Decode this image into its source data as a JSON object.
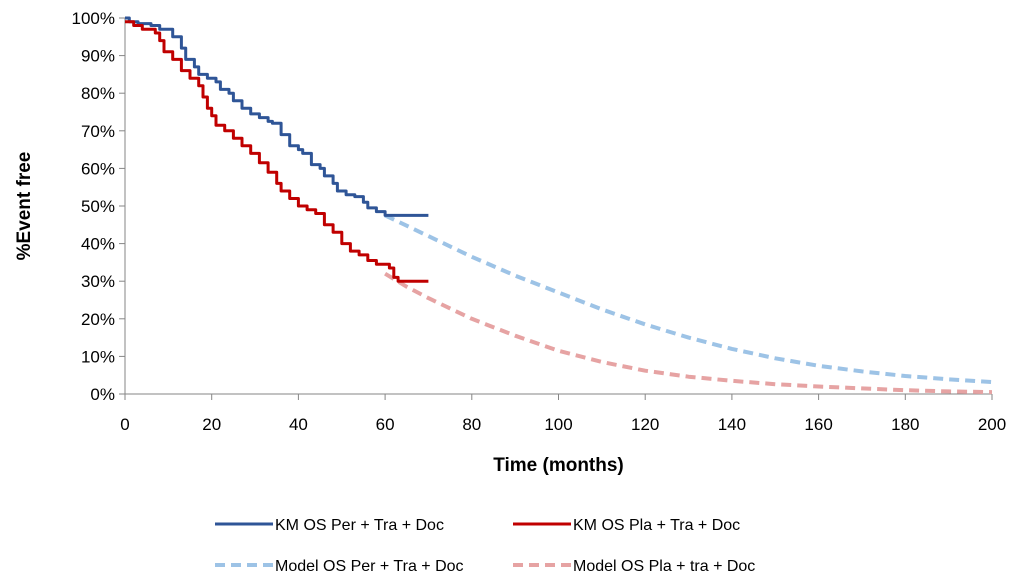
{
  "chart_data": {
    "type": "line",
    "title": "",
    "xlabel": "Time (months)",
    "ylabel": "%Event free",
    "xlim": [
      0,
      200
    ],
    "ylim": [
      0,
      100
    ],
    "x_ticks": [
      0,
      20,
      40,
      60,
      80,
      100,
      120,
      140,
      160,
      180,
      200
    ],
    "y_ticks": [
      0,
      10,
      20,
      30,
      40,
      50,
      60,
      70,
      80,
      90,
      100
    ],
    "y_tick_format": "percent",
    "grid": false,
    "legend_position": "bottom",
    "series": [
      {
        "name": "KM OS Per + Tra + Doc",
        "style": "solid",
        "color": "#2f5597",
        "step": true,
        "points": [
          [
            0,
            100
          ],
          [
            1,
            99
          ],
          [
            3,
            98.5
          ],
          [
            6,
            98
          ],
          [
            8,
            97
          ],
          [
            11,
            95
          ],
          [
            13,
            92
          ],
          [
            14,
            89
          ],
          [
            16,
            87
          ],
          [
            17,
            85
          ],
          [
            19,
            84
          ],
          [
            21,
            83
          ],
          [
            22,
            81
          ],
          [
            24,
            80
          ],
          [
            25,
            78
          ],
          [
            27,
            76
          ],
          [
            29,
            74.5
          ],
          [
            31,
            73.5
          ],
          [
            33,
            72.5
          ],
          [
            34,
            72
          ],
          [
            36,
            69
          ],
          [
            38,
            66
          ],
          [
            40,
            65
          ],
          [
            41,
            64
          ],
          [
            43,
            61
          ],
          [
            45,
            60
          ],
          [
            46,
            58
          ],
          [
            48,
            56
          ],
          [
            49,
            54
          ],
          [
            51,
            53
          ],
          [
            53,
            52.5
          ],
          [
            55,
            51
          ],
          [
            56,
            49.5
          ],
          [
            58,
            48.5
          ],
          [
            60,
            47.5
          ],
          [
            70,
            47.5
          ]
        ]
      },
      {
        "name": "KM OS Pla + Tra + Doc",
        "style": "solid",
        "color": "#c00000",
        "step": true,
        "points": [
          [
            0,
            99
          ],
          [
            2,
            98
          ],
          [
            4,
            97
          ],
          [
            7,
            96
          ],
          [
            8,
            94
          ],
          [
            9,
            91
          ],
          [
            11,
            89
          ],
          [
            13,
            86
          ],
          [
            15,
            84
          ],
          [
            17,
            82
          ],
          [
            18,
            79
          ],
          [
            19,
            76
          ],
          [
            20,
            74
          ],
          [
            21,
            71.5
          ],
          [
            23,
            70
          ],
          [
            25,
            68
          ],
          [
            27,
            66
          ],
          [
            29,
            64
          ],
          [
            31,
            61.5
          ],
          [
            33,
            59
          ],
          [
            35,
            56
          ],
          [
            36,
            54
          ],
          [
            38,
            52
          ],
          [
            40,
            50
          ],
          [
            42,
            49
          ],
          [
            44,
            48
          ],
          [
            46,
            45
          ],
          [
            48,
            43
          ],
          [
            50,
            40
          ],
          [
            52,
            38
          ],
          [
            54,
            37
          ],
          [
            56,
            35.5
          ],
          [
            58,
            34.5
          ],
          [
            61,
            33.5
          ],
          [
            62,
            31
          ],
          [
            63,
            30
          ],
          [
            70,
            30
          ]
        ]
      },
      {
        "name": "Model OS Per + Tra + Doc",
        "style": "dashed",
        "color": "#9dc3e6",
        "points": [
          [
            60,
            47.5
          ],
          [
            70,
            42
          ],
          [
            80,
            36.5
          ],
          [
            90,
            31.5
          ],
          [
            100,
            27
          ],
          [
            110,
            22.5
          ],
          [
            120,
            18.5
          ],
          [
            130,
            15
          ],
          [
            140,
            12
          ],
          [
            150,
            9.5
          ],
          [
            160,
            7.5
          ],
          [
            170,
            6
          ],
          [
            180,
            4.8
          ],
          [
            190,
            3.9
          ],
          [
            200,
            3.2
          ]
        ]
      },
      {
        "name": "Model OS Pla + tra + Doc",
        "style": "dashed",
        "color": "#e6a3a3",
        "points": [
          [
            60,
            32
          ],
          [
            65,
            28.5
          ],
          [
            70,
            25.5
          ],
          [
            80,
            20
          ],
          [
            90,
            15.5
          ],
          [
            100,
            11.5
          ],
          [
            110,
            8.5
          ],
          [
            120,
            6.2
          ],
          [
            130,
            4.6
          ],
          [
            140,
            3.5
          ],
          [
            150,
            2.6
          ],
          [
            160,
            2
          ],
          [
            170,
            1.5
          ],
          [
            180,
            1
          ],
          [
            190,
            0.7
          ],
          [
            200,
            0.5
          ]
        ]
      }
    ]
  }
}
